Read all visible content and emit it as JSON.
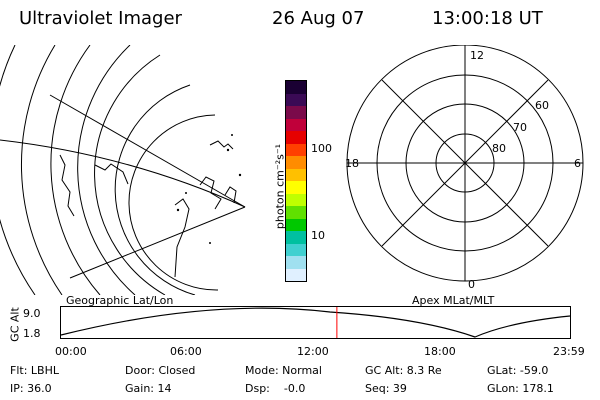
{
  "header": {
    "title": "Ultraviolet Imager",
    "date": "26 Aug 07",
    "time": "13:00:18 UT"
  },
  "colorbar": {
    "unit_label": "photon cm⁻²s⁻¹",
    "ticks": [
      "100",
      "10"
    ],
    "colors": [
      "#1a0033",
      "#3a0a55",
      "#7a0a4a",
      "#c0003a",
      "#e60000",
      "#ff4000",
      "#ff8c00",
      "#ffc000",
      "#ffff00",
      "#bfff00",
      "#60e000",
      "#00c800",
      "#00c0a0",
      "#40d0d0",
      "#a0e0f0",
      "#e0f0ff"
    ]
  },
  "geo_label": "Geographic Lat/Lon",
  "polar": {
    "label": "Apex MLat/MLT",
    "mlt": {
      "top": "12",
      "left": "18",
      "right": "6",
      "bottom": "0"
    },
    "lats": [
      "60",
      "70",
      "80"
    ]
  },
  "track": {
    "axis_label": "GC Alt",
    "y_ticks": [
      "9.0",
      "1.8"
    ],
    "x_ticks": [
      "00:00",
      "06:00",
      "12:00",
      "18:00",
      "23:59"
    ],
    "current_fraction": 0.542,
    "marker_color": "#ff0000"
  },
  "info": {
    "flt": "Flt: LBHL",
    "door": "Door: Closed",
    "mode": "Mode: Normal",
    "gcalt": "GC Alt: 8.3 Re",
    "glat": "GLat: -59.0",
    "ip": "IP: 36.0",
    "gain": "Gain: 14",
    "dsp": "Dsp:    -0.0",
    "seq": "Seq: 39",
    "glon": "GLon: 178.1"
  }
}
